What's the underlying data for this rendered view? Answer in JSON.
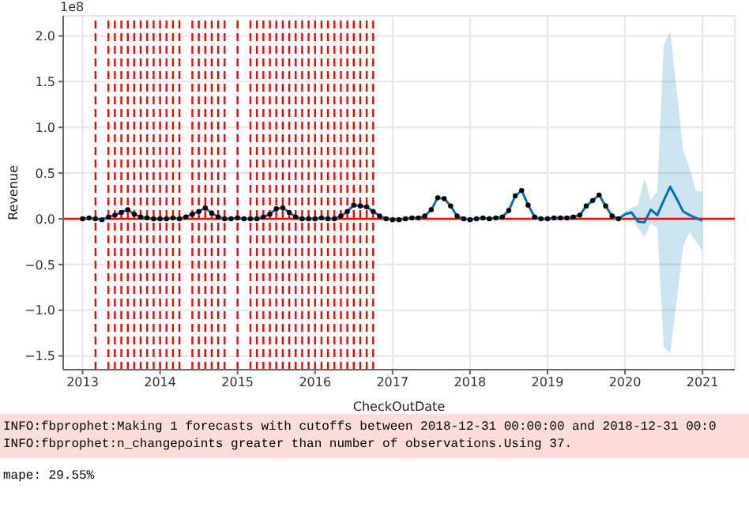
{
  "chart_data": {
    "type": "line",
    "xlabel": "CheckOutDate",
    "ylabel": "Revenue",
    "annotations": [
      "1e8",
      "INFO:fbprophet:Making 1 forecasts with cutoffs between 2018-12-31 00:00:00 and 2018-12-31 00:0",
      "INFO:fbprophet:n_changepoints greater than number of observations.Using 37.",
      "mape: 29.55%"
    ],
    "xlim": [
      "2012-10",
      "2021-06"
    ],
    "xticks": [
      "2013",
      "2014",
      "2015",
      "2016",
      "2017",
      "2018",
      "2019",
      "2020",
      "2021"
    ],
    "ylim": [
      -1.65,
      2.22
    ],
    "yticks": [
      {
        "value": -1.5,
        "label": "−1.5"
      },
      {
        "value": -1,
        "label": "−1.0"
      },
      {
        "value": -0.5,
        "label": "−0.5"
      },
      {
        "value": 0,
        "label": "0.0"
      },
      {
        "value": 0.5,
        "label": "0.5"
      },
      {
        "value": 1,
        "label": "1.0"
      },
      {
        "value": 1.5,
        "label": "1.5"
      },
      {
        "value": 2,
        "label": "2.0"
      }
    ],
    "grid": true,
    "series": [
      {
        "color": "#0072b2",
        "x": [
          "2013-01",
          "2013-02",
          "2013-03",
          "2013-04",
          "2013-05",
          "2013-06",
          "2013-07",
          "2013-08",
          "2013-09",
          "2013-10",
          "2013-11",
          "2013-12",
          "2014-01",
          "2014-02",
          "2014-03",
          "2014-04",
          "2014-05",
          "2014-06",
          "2014-07",
          "2014-08",
          "2014-09",
          "2014-10",
          "2014-11",
          "2014-12",
          "2015-01",
          "2015-02",
          "2015-03",
          "2015-04",
          "2015-05",
          "2015-06",
          "2015-07",
          "2015-08",
          "2015-09",
          "2015-10",
          "2015-11",
          "2015-12",
          "2016-01",
          "2016-02",
          "2016-03",
          "2016-04",
          "2016-05",
          "2016-06",
          "2016-07",
          "2016-08",
          "2016-09",
          "2016-10",
          "2016-11",
          "2016-12",
          "2017-01",
          "2017-02",
          "2017-03",
          "2017-04",
          "2017-05",
          "2017-06",
          "2017-07",
          "2017-08",
          "2017-09",
          "2017-10",
          "2017-11",
          "2017-12",
          "2018-01",
          "2018-02",
          "2018-03",
          "2018-04",
          "2018-05",
          "2018-06",
          "2018-07",
          "2018-08",
          "2018-09",
          "2018-10",
          "2018-11",
          "2018-12",
          "2019-01",
          "2019-02",
          "2019-03",
          "2019-04",
          "2019-05",
          "2019-06",
          "2019-07",
          "2019-08",
          "2019-09",
          "2019-10",
          "2019-11",
          "2019-12",
          "2020-01",
          "2020-02",
          "2020-03",
          "2020-04",
          "2020-05",
          "2020-06",
          "2020-07",
          "2020-08",
          "2020-09",
          "2020-10",
          "2020-11",
          "2020-12",
          "2021-01"
        ],
        "values": [
          0,
          0.01,
          0,
          -0.01,
          0.02,
          0.04,
          0.07,
          0.1,
          0.05,
          0.02,
          0.01,
          0,
          0,
          0,
          0.01,
          0,
          0.02,
          0.05,
          0.08,
          0.12,
          0.06,
          0.02,
          0,
          0,
          0.01,
          0,
          0,
          0,
          0.02,
          0.05,
          0.11,
          0.12,
          0.07,
          0.02,
          0,
          0,
          0,
          0.01,
          0,
          0,
          0.03,
          0.08,
          0.15,
          0.14,
          0.13,
          0.08,
          0.03,
          0,
          -0.01,
          -0.01,
          0,
          0.01,
          0.01,
          0.03,
          0.1,
          0.23,
          0.22,
          0.14,
          0.03,
          0,
          -0.01,
          0,
          0.01,
          0,
          0.01,
          0.02,
          0.09,
          0.25,
          0.31,
          0.15,
          0.02,
          0,
          0,
          0.01,
          0.01,
          0.01,
          0.02,
          0.04,
          0.14,
          0.2,
          0.26,
          0.14,
          0.03,
          0,
          0.05,
          0.07,
          -0.03,
          -0.04,
          0.1,
          0.04,
          0.2,
          0.35,
          0.22,
          0.08,
          0.04,
          0.01,
          -0.02
        ],
        "lower": [
          null,
          null,
          null,
          null,
          null,
          null,
          null,
          null,
          null,
          null,
          null,
          null,
          null,
          null,
          null,
          null,
          null,
          null,
          null,
          null,
          null,
          null,
          null,
          null,
          null,
          null,
          null,
          null,
          null,
          null,
          null,
          null,
          null,
          null,
          null,
          null,
          null,
          null,
          null,
          null,
          null,
          null,
          null,
          null,
          null,
          null,
          null,
          null,
          null,
          null,
          null,
          null,
          null,
          null,
          null,
          null,
          null,
          null,
          null,
          null,
          null,
          null,
          null,
          null,
          null,
          null,
          null,
          null,
          null,
          null,
          null,
          null,
          null,
          null,
          null,
          null,
          null,
          null,
          null,
          null,
          null,
          null,
          null,
          null,
          0.02,
          0.02,
          -0.1,
          -0.2,
          -0.05,
          -0.1,
          -1.4,
          -1.47,
          -0.9,
          -0.3,
          -0.15,
          -0.25,
          -0.35
        ],
        "upper": [
          null,
          null,
          null,
          null,
          null,
          null,
          null,
          null,
          null,
          null,
          null,
          null,
          null,
          null,
          null,
          null,
          null,
          null,
          null,
          null,
          null,
          null,
          null,
          null,
          null,
          null,
          null,
          null,
          null,
          null,
          null,
          null,
          null,
          null,
          null,
          null,
          null,
          null,
          null,
          null,
          null,
          null,
          null,
          null,
          null,
          null,
          null,
          null,
          null,
          null,
          null,
          null,
          null,
          null,
          null,
          null,
          null,
          null,
          null,
          null,
          null,
          null,
          null,
          null,
          null,
          null,
          null,
          null,
          null,
          null,
          null,
          null,
          null,
          null,
          null,
          null,
          null,
          null,
          null,
          null,
          null,
          null,
          null,
          null,
          0.08,
          0.12,
          0.15,
          0.45,
          0.2,
          0.3,
          1.9,
          2.05,
          1.4,
          0.75,
          0.55,
          0.3,
          0.3
        ]
      },
      {
        "type": "scatter",
        "color": "#000000",
        "x": [
          "2013-01",
          "2013-02",
          "2013-03",
          "2013-04",
          "2013-05",
          "2013-06",
          "2013-07",
          "2013-08",
          "2013-09",
          "2013-10",
          "2013-11",
          "2013-12",
          "2014-01",
          "2014-02",
          "2014-03",
          "2014-04",
          "2014-05",
          "2014-06",
          "2014-07",
          "2014-08",
          "2014-09",
          "2014-10",
          "2014-11",
          "2014-12",
          "2015-01",
          "2015-02",
          "2015-03",
          "2015-04",
          "2015-05",
          "2015-06",
          "2015-07",
          "2015-08",
          "2015-09",
          "2015-10",
          "2015-11",
          "2015-12",
          "2016-01",
          "2016-02",
          "2016-03",
          "2016-04",
          "2016-05",
          "2016-06",
          "2016-07",
          "2016-08",
          "2016-09",
          "2016-10",
          "2016-11",
          "2016-12",
          "2017-01",
          "2017-02",
          "2017-03",
          "2017-04",
          "2017-05",
          "2017-06",
          "2017-07",
          "2017-08",
          "2017-09",
          "2017-10",
          "2017-11",
          "2017-12",
          "2018-01",
          "2018-02",
          "2018-03",
          "2018-04",
          "2018-05",
          "2018-06",
          "2018-07",
          "2018-08",
          "2018-09",
          "2018-10",
          "2018-11",
          "2018-12",
          "2019-01",
          "2019-02",
          "2019-03",
          "2019-04",
          "2019-05",
          "2019-06",
          "2019-07",
          "2019-08",
          "2019-09",
          "2019-10",
          "2019-11",
          "2019-12"
        ],
        "values": [
          0,
          0.01,
          0,
          -0.01,
          0.02,
          0.04,
          0.07,
          0.1,
          0.05,
          0.02,
          0.01,
          0,
          0,
          0,
          0.01,
          0,
          0.02,
          0.05,
          0.08,
          0.12,
          0.06,
          0.02,
          0,
          0,
          0.01,
          0,
          0,
          0,
          0.02,
          0.05,
          0.11,
          0.12,
          0.07,
          0.02,
          0,
          0,
          0,
          0.01,
          0,
          0,
          0.03,
          0.08,
          0.15,
          0.14,
          0.13,
          0.08,
          0.03,
          0,
          -0.01,
          -0.01,
          0,
          0.01,
          0.01,
          0.03,
          0.1,
          0.23,
          0.22,
          0.14,
          0.03,
          0,
          -0.01,
          0,
          0.01,
          0,
          0.01,
          0.02,
          0.09,
          0.25,
          0.31,
          0.15,
          0.02,
          0,
          0,
          0.01,
          0.01,
          0.01,
          0.02,
          0.04,
          0.14,
          0.2,
          0.26,
          0.14,
          0.03,
          0
        ]
      }
    ],
    "ref_lines": [
      {
        "axis": "y",
        "value": 0,
        "color": "#ff0000",
        "line_style": "solid"
      },
      {
        "axis": "x",
        "value": "2013-03",
        "color": "#ff0000",
        "line_style": "dashed"
      },
      {
        "axis": "x",
        "value": "2013-05",
        "color": "#ff0000",
        "line_style": "dashed"
      },
      {
        "axis": "x",
        "value": "2013-06",
        "color": "#ff0000",
        "line_style": "dashed"
      },
      {
        "axis": "x",
        "value": "2013-07",
        "color": "#ff0000",
        "line_style": "dashed"
      },
      {
        "axis": "x",
        "value": "2013-08",
        "color": "#ff0000",
        "line_style": "dashed"
      },
      {
        "axis": "x",
        "value": "2013-09",
        "color": "#ff0000",
        "line_style": "dashed"
      },
      {
        "axis": "x",
        "value": "2013-10",
        "color": "#ff0000",
        "line_style": "dashed"
      },
      {
        "axis": "x",
        "value": "2013-11",
        "color": "#ff0000",
        "line_style": "dashed"
      },
      {
        "axis": "x",
        "value": "2013-12",
        "color": "#ff0000",
        "line_style": "dashed"
      },
      {
        "axis": "x",
        "value": "2014-01",
        "color": "#ff0000",
        "line_style": "dashed"
      },
      {
        "axis": "x",
        "value": "2014-02",
        "color": "#ff0000",
        "line_style": "dashed"
      },
      {
        "axis": "x",
        "value": "2014-03",
        "color": "#ff0000",
        "line_style": "dashed"
      },
      {
        "axis": "x",
        "value": "2014-04",
        "color": "#ff0000",
        "line_style": "dashed"
      },
      {
        "axis": "x",
        "value": "2014-06",
        "color": "#ff0000",
        "line_style": "dashed"
      },
      {
        "axis": "x",
        "value": "2014-07",
        "color": "#ff0000",
        "line_style": "dashed"
      },
      {
        "axis": "x",
        "value": "2014-08",
        "color": "#ff0000",
        "line_style": "dashed"
      },
      {
        "axis": "x",
        "value": "2014-09",
        "color": "#ff0000",
        "line_style": "dashed"
      },
      {
        "axis": "x",
        "value": "2014-10",
        "color": "#ff0000",
        "line_style": "dashed"
      },
      {
        "axis": "x",
        "value": "2014-11",
        "color": "#ff0000",
        "line_style": "dashed"
      },
      {
        "axis": "x",
        "value": "2015-01",
        "color": "#ff0000",
        "line_style": "dashed"
      },
      {
        "axis": "x",
        "value": "2015-03",
        "color": "#ff0000",
        "line_style": "dashed"
      },
      {
        "axis": "x",
        "value": "2015-04",
        "color": "#ff0000",
        "line_style": "dashed"
      },
      {
        "axis": "x",
        "value": "2015-05",
        "color": "#ff0000",
        "line_style": "dashed"
      },
      {
        "axis": "x",
        "value": "2015-06",
        "color": "#ff0000",
        "line_style": "dashed"
      },
      {
        "axis": "x",
        "value": "2015-07",
        "color": "#ff0000",
        "line_style": "dashed"
      },
      {
        "axis": "x",
        "value": "2015-08",
        "color": "#ff0000",
        "line_style": "dashed"
      },
      {
        "axis": "x",
        "value": "2015-09",
        "color": "#ff0000",
        "line_style": "dashed"
      },
      {
        "axis": "x",
        "value": "2015-10",
        "color": "#ff0000",
        "line_style": "dashed"
      },
      {
        "axis": "x",
        "value": "2015-11",
        "color": "#ff0000",
        "line_style": "dashed"
      },
      {
        "axis": "x",
        "value": "2015-12",
        "color": "#ff0000",
        "line_style": "dashed"
      },
      {
        "axis": "x",
        "value": "2016-01",
        "color": "#ff0000",
        "line_style": "dashed"
      },
      {
        "axis": "x",
        "value": "2016-02",
        "color": "#ff0000",
        "line_style": "dashed"
      },
      {
        "axis": "x",
        "value": "2016-03",
        "color": "#ff0000",
        "line_style": "dashed"
      },
      {
        "axis": "x",
        "value": "2016-04",
        "color": "#ff0000",
        "line_style": "dashed"
      },
      {
        "axis": "x",
        "value": "2016-05",
        "color": "#ff0000",
        "line_style": "dashed"
      },
      {
        "axis": "x",
        "value": "2016-06",
        "color": "#ff0000",
        "line_style": "dashed"
      },
      {
        "axis": "x",
        "value": "2016-07",
        "color": "#ff0000",
        "line_style": "dashed"
      },
      {
        "axis": "x",
        "value": "2016-08",
        "color": "#ff0000",
        "line_style": "dashed"
      },
      {
        "axis": "x",
        "value": "2016-09",
        "color": "#ff0000",
        "line_style": "dashed"
      },
      {
        "axis": "x",
        "value": "2016-10",
        "color": "#ff0000",
        "line_style": "dashed"
      }
    ]
  }
}
